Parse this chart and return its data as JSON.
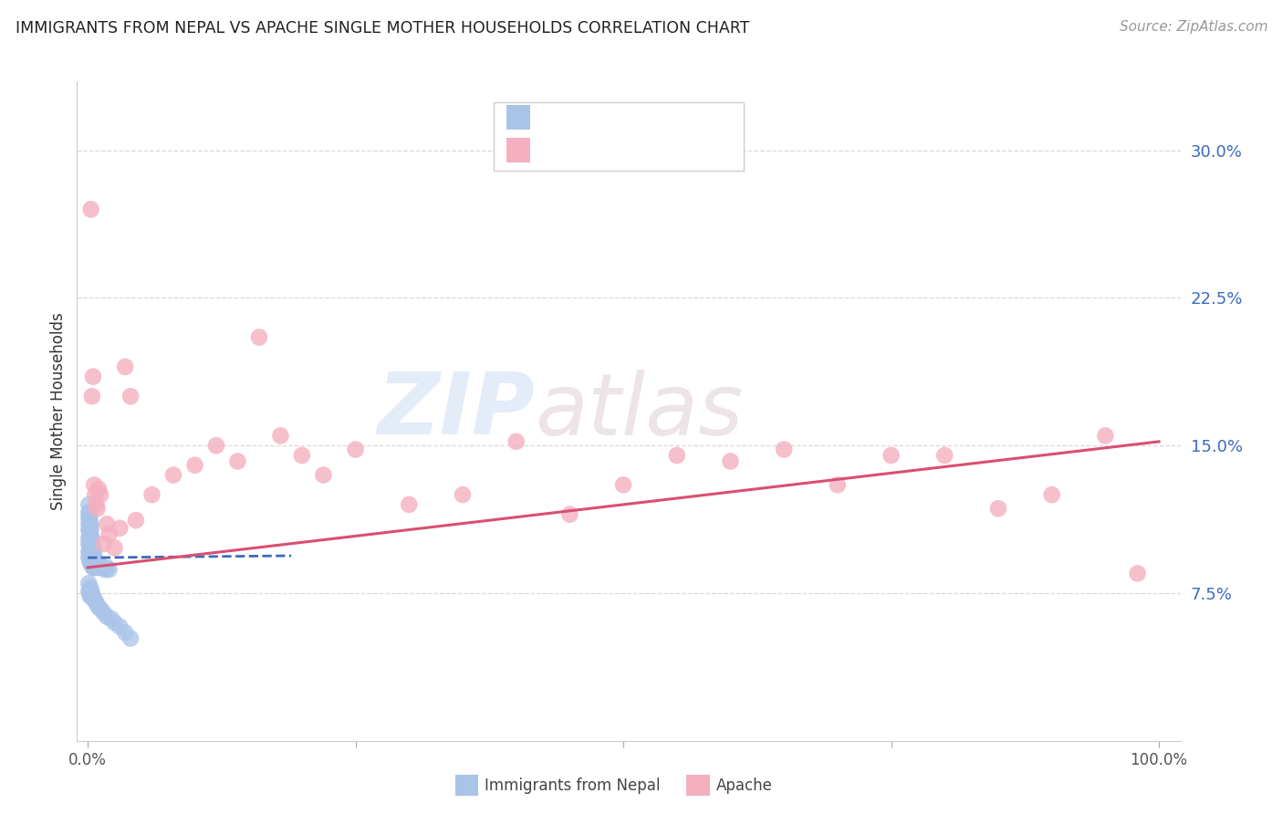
{
  "title": "IMMIGRANTS FROM NEPAL VS APACHE SINGLE MOTHER HOUSEHOLDS CORRELATION CHART",
  "source": "Source: ZipAtlas.com",
  "ylabel": "Single Mother Households",
  "ytick_labels": [
    "7.5%",
    "15.0%",
    "22.5%",
    "30.0%"
  ],
  "ytick_values": [
    0.075,
    0.15,
    0.225,
    0.3
  ],
  "xlim": [
    -0.01,
    1.02
  ],
  "ylim": [
    0.0,
    0.335
  ],
  "nepal_color": "#aac4e8",
  "apache_color": "#f4afc0",
  "nepal_line_color": "#3a6bbf",
  "apache_line_color": "#d94f72",
  "background_color": "#ffffff",
  "watermark_zip": "ZIP",
  "watermark_atlas": "atlas",
  "nepal_x": [
    0.001,
    0.001,
    0.001,
    0.001,
    0.001,
    0.001,
    0.001,
    0.001,
    0.001,
    0.002,
    0.002,
    0.002,
    0.002,
    0.002,
    0.002,
    0.002,
    0.002,
    0.002,
    0.003,
    0.003,
    0.003,
    0.003,
    0.003,
    0.003,
    0.003,
    0.004,
    0.004,
    0.004,
    0.004,
    0.004,
    0.005,
    0.005,
    0.005,
    0.005,
    0.006,
    0.006,
    0.006,
    0.007,
    0.007,
    0.008,
    0.009,
    0.01,
    0.011,
    0.012,
    0.014,
    0.016,
    0.018,
    0.02,
    0.001,
    0.001,
    0.002,
    0.002,
    0.003,
    0.003,
    0.004,
    0.005,
    0.006,
    0.007,
    0.008,
    0.01,
    0.012,
    0.015,
    0.018,
    0.022,
    0.025,
    0.03,
    0.035,
    0.04
  ],
  "nepal_y": [
    0.093,
    0.096,
    0.1,
    0.103,
    0.107,
    0.11,
    0.113,
    0.116,
    0.12,
    0.091,
    0.094,
    0.097,
    0.1,
    0.104,
    0.107,
    0.11,
    0.113,
    0.116,
    0.09,
    0.093,
    0.096,
    0.1,
    0.103,
    0.107,
    0.11,
    0.089,
    0.093,
    0.096,
    0.1,
    0.103,
    0.088,
    0.092,
    0.096,
    0.099,
    0.088,
    0.092,
    0.096,
    0.088,
    0.092,
    0.088,
    0.089,
    0.09,
    0.088,
    0.089,
    0.088,
    0.087,
    0.088,
    0.087,
    0.08,
    0.076,
    0.078,
    0.074,
    0.077,
    0.073,
    0.075,
    0.073,
    0.072,
    0.071,
    0.07,
    0.068,
    0.067,
    0.065,
    0.063,
    0.062,
    0.06,
    0.058,
    0.055,
    0.052
  ],
  "apache_x": [
    0.003,
    0.004,
    0.005,
    0.006,
    0.007,
    0.008,
    0.009,
    0.01,
    0.012,
    0.015,
    0.018,
    0.02,
    0.025,
    0.03,
    0.035,
    0.04,
    0.045,
    0.06,
    0.08,
    0.1,
    0.12,
    0.14,
    0.16,
    0.18,
    0.2,
    0.22,
    0.25,
    0.3,
    0.35,
    0.4,
    0.45,
    0.5,
    0.55,
    0.6,
    0.65,
    0.7,
    0.75,
    0.8,
    0.85,
    0.9,
    0.95,
    0.98
  ],
  "apache_y": [
    0.27,
    0.175,
    0.185,
    0.13,
    0.125,
    0.12,
    0.118,
    0.128,
    0.125,
    0.1,
    0.11,
    0.105,
    0.098,
    0.108,
    0.19,
    0.175,
    0.112,
    0.125,
    0.135,
    0.14,
    0.15,
    0.142,
    0.205,
    0.155,
    0.145,
    0.135,
    0.148,
    0.12,
    0.125,
    0.152,
    0.115,
    0.13,
    0.145,
    0.142,
    0.148,
    0.13,
    0.145,
    0.145,
    0.118,
    0.125,
    0.155,
    0.085
  ],
  "nepal_trend_x": [
    0.0,
    0.19
  ],
  "nepal_trend_y": [
    0.093,
    0.094
  ],
  "apache_trend_x": [
    0.0,
    1.0
  ],
  "apache_trend_y": [
    0.088,
    0.152
  ]
}
